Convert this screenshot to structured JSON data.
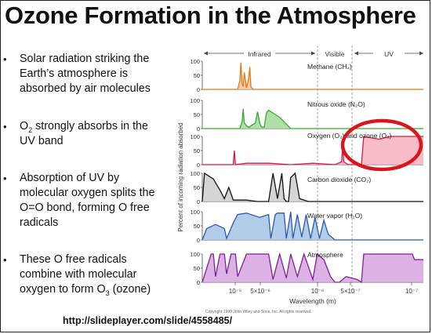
{
  "slide": {
    "title": "Ozone Formation in the Atmosphere",
    "url": "http://slideplayer.com/slide/4558485/"
  },
  "bullets": [
    {
      "lines": [
        "Solar radiation striking the",
        "Earth’s atmosphere is",
        "absorbed by air molecules"
      ]
    },
    {
      "lines": [
        "O|2| strongly absorbs in the",
        "UV band"
      ]
    },
    {
      "lines": [
        "Absorption of UV by",
        "molecular oxygen splits the",
        "O=O bond, forming O free",
        "radicals"
      ]
    },
    {
      "lines": [
        "These O free radicals",
        "combine with molecular",
        "oxygen to form O|3| (ozone)"
      ]
    }
  ],
  "chart_data": {
    "type": "area",
    "bands": [
      "Infrared",
      "Visible",
      "UV"
    ],
    "ylabel": "Percent of incoming radiation absorbed",
    "xlabel": "Wavelength (m)",
    "x_ticks": [
      "10⁻⁵",
      "5×10⁻⁶",
      "10⁻⁶",
      "5×10⁻⁷",
      "10⁻⁷"
    ],
    "y_ticks": [
      "100",
      "50",
      "0"
    ],
    "copyright": "Copyright 1999 John Wiley and Sons, Inc. All rights reserved.",
    "series": [
      {
        "name": "Methane (CH₄)",
        "color": "#e07a18",
        "fill": "#f5c79a",
        "x": [
          0,
          0.16,
          0.17,
          0.175,
          0.18,
          0.185,
          0.19,
          0.2,
          0.21,
          0.215,
          0.22,
          0.23,
          0.24,
          0.28,
          1
        ],
        "y": [
          0,
          0,
          30,
          95,
          20,
          10,
          60,
          5,
          40,
          80,
          10,
          0,
          0,
          0,
          0
        ]
      },
      {
        "name": "Nitrous oxide (N₂O)",
        "color": "#3aa832",
        "fill": "#a8dca0",
        "x": [
          0,
          0.17,
          0.18,
          0.185,
          0.19,
          0.2,
          0.21,
          0.215,
          0.22,
          0.24,
          0.25,
          0.26,
          0.265,
          0.27,
          0.28,
          0.29,
          0.3,
          0.35,
          0.4,
          1
        ],
        "y": [
          0,
          0,
          25,
          70,
          20,
          10,
          5,
          5,
          10,
          20,
          60,
          20,
          10,
          5,
          5,
          55,
          65,
          40,
          0,
          0
        ]
      },
      {
        "name": "Oxygen (O₂) and ozone (O₃)",
        "color": "#d2194a",
        "fill": "#f7b5c2",
        "x": [
          0,
          0.1,
          0.14,
          0.145,
          0.15,
          0.2,
          0.3,
          0.4,
          0.5,
          0.6,
          0.63,
          0.635,
          0.64,
          0.66,
          0.7,
          0.72,
          0.73,
          0.8,
          0.85,
          0.9,
          1
        ],
        "y": [
          0,
          0,
          0,
          50,
          0,
          5,
          5,
          0,
          5,
          0,
          10,
          65,
          10,
          0,
          0,
          0,
          100,
          90,
          100,
          100,
          100
        ]
      },
      {
        "name": "Carbon dioxide (CO₂)",
        "color": "#111111",
        "fill": "#d0d0d0",
        "x": [
          0,
          0.01,
          0.05,
          0.08,
          0.1,
          0.12,
          0.14,
          0.15,
          0.2,
          0.25,
          0.3,
          0.32,
          0.34,
          0.36,
          0.37,
          0.38,
          0.39,
          0.4,
          0.42,
          0.44,
          0.46,
          0.48,
          0.5,
          0.55,
          1
        ],
        "y": [
          0,
          100,
          80,
          40,
          10,
          50,
          5,
          5,
          5,
          0,
          0,
          100,
          10,
          100,
          10,
          0,
          0,
          85,
          100,
          10,
          5,
          0,
          0,
          0,
          0
        ]
      },
      {
        "name": "Water vapor (H₂O)",
        "color": "#2a5aa8",
        "fill": "#a8c8e8",
        "x": [
          0,
          0.02,
          0.06,
          0.1,
          0.11,
          0.14,
          0.16,
          0.2,
          0.26,
          0.3,
          0.31,
          0.33,
          0.34,
          0.37,
          0.38,
          0.4,
          0.41,
          0.43,
          0.45,
          0.47,
          0.49,
          0.51,
          0.53,
          0.55,
          0.57,
          0.6,
          1
        ],
        "y": [
          0,
          40,
          55,
          40,
          5,
          60,
          90,
          95,
          80,
          90,
          5,
          90,
          95,
          95,
          5,
          100,
          5,
          90,
          10,
          90,
          5,
          80,
          5,
          70,
          20,
          0,
          0
        ]
      },
      {
        "name": "Atmosphere",
        "color": "#802098",
        "fill": "#d8a8e0",
        "x": [
          0,
          0.04,
          0.05,
          0.06,
          0.08,
          0.1,
          0.11,
          0.13,
          0.15,
          0.16,
          0.18,
          0.2,
          0.22,
          0.25,
          0.3,
          0.32,
          0.35,
          0.38,
          0.4,
          0.43,
          0.46,
          0.5,
          0.52,
          0.55,
          0.58,
          0.6,
          0.62,
          0.65,
          0.7,
          0.72,
          0.73,
          0.95,
          0.96,
          1
        ],
        "y": [
          0,
          100,
          100,
          20,
          100,
          100,
          30,
          100,
          100,
          20,
          60,
          100,
          100,
          100,
          100,
          10,
          100,
          15,
          100,
          20,
          100,
          10,
          100,
          80,
          20,
          0,
          0,
          20,
          10,
          0,
          100,
          100,
          80,
          80
        ]
      }
    ]
  }
}
